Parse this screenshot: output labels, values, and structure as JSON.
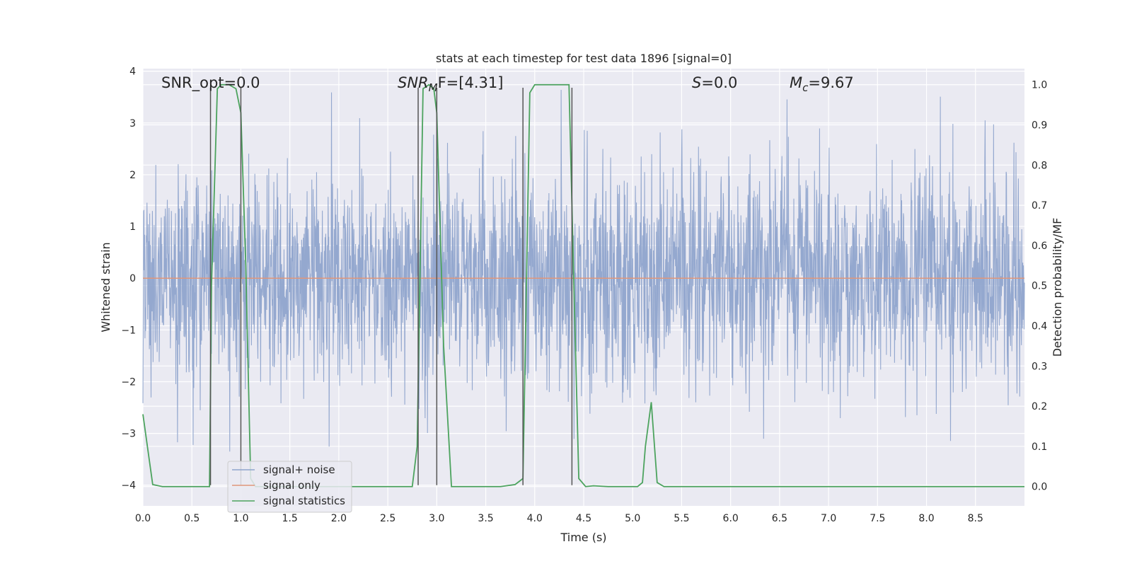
{
  "chart_data": {
    "type": "line",
    "title": "stats at each timestep for test data 1896 [signal=0]",
    "xlabel": "Time (s)",
    "ylabel_left": "Whitened strain",
    "ylabel_right": "Detection probability/MF",
    "xlim": [
      0.0,
      9.0
    ],
    "ylim_left": [
      -4.4,
      4.05
    ],
    "ylim_right": [
      -0.048,
      1.04
    ],
    "x_ticks": [
      "0.0",
      "0.5",
      "1.0",
      "1.5",
      "2.0",
      "2.5",
      "3.0",
      "3.5",
      "4.0",
      "4.5",
      "5.0",
      "5.5",
      "6.0",
      "6.5",
      "7.0",
      "7.5",
      "8.0",
      "8.5"
    ],
    "y_ticks_left": [
      "4",
      "3",
      "2",
      "1",
      "0",
      "−1",
      "−2",
      "−3",
      "−4"
    ],
    "y_ticks_right": [
      "1.0",
      "0.9",
      "0.8",
      "0.7",
      "0.6",
      "0.5",
      "0.4",
      "0.3",
      "0.2",
      "0.1",
      "0.0"
    ],
    "grid": true,
    "legend_position": "lower-left",
    "annotations": {
      "snr_opt": "SNR_opt=0.0",
      "snr_mf_main": "SNR",
      "snr_mf_sub": "M",
      "snr_mf_rest": "F=[4.31]",
      "s_main": "S",
      "s_rest": "=0.0",
      "mc_main": "M",
      "mc_sub": "c",
      "mc_rest": "=9.67"
    },
    "series": [
      {
        "name": "signal+ noise",
        "color": "#8fa4cc",
        "description_values": "whitened strain noise, approximately between -3.6 and 3.7",
        "envelope_typical": [
          -1.8,
          1.8
        ],
        "envelope_peak": [
          -3.6,
          3.7
        ]
      },
      {
        "name": "signal only",
        "color": "#e0967a",
        "x": [
          0.0,
          9.0
        ],
        "y": [
          0.0,
          0.0
        ]
      },
      {
        "name": "signal statistics",
        "color": "#4ca35e",
        "x": [
          0.0,
          0.1,
          0.2,
          0.68,
          0.7,
          0.76,
          0.8,
          0.88,
          0.95,
          1.0,
          1.05,
          1.1,
          1.15,
          2.75,
          2.8,
          2.86,
          2.92,
          2.97,
          3.0,
          3.07,
          3.15,
          3.65,
          3.8,
          3.88,
          3.95,
          4.0,
          4.35,
          4.4,
          4.45,
          4.52,
          4.6,
          4.75,
          5.05,
          5.1,
          5.13,
          5.19,
          5.25,
          5.32,
          9.0
        ],
        "y": [
          0.18,
          0.005,
          0.0,
          0.0,
          0.5,
          0.99,
          1.0,
          1.0,
          0.99,
          0.93,
          0.55,
          0.02,
          0.0,
          0.0,
          0.1,
          0.99,
          1.0,
          0.99,
          0.93,
          0.35,
          0.0,
          0.0,
          0.005,
          0.02,
          0.98,
          1.0,
          1.0,
          0.5,
          0.02,
          0.0,
          0.002,
          0.0,
          0.0,
          0.01,
          0.1,
          0.21,
          0.01,
          0.0,
          0.0
        ]
      }
    ],
    "vertical_markers": {
      "color": "#555555",
      "x": [
        0.69,
        1.0,
        2.81,
        3.0,
        3.88,
        4.38
      ],
      "y_top": 3.68,
      "y_bottom": -4.0
    }
  }
}
